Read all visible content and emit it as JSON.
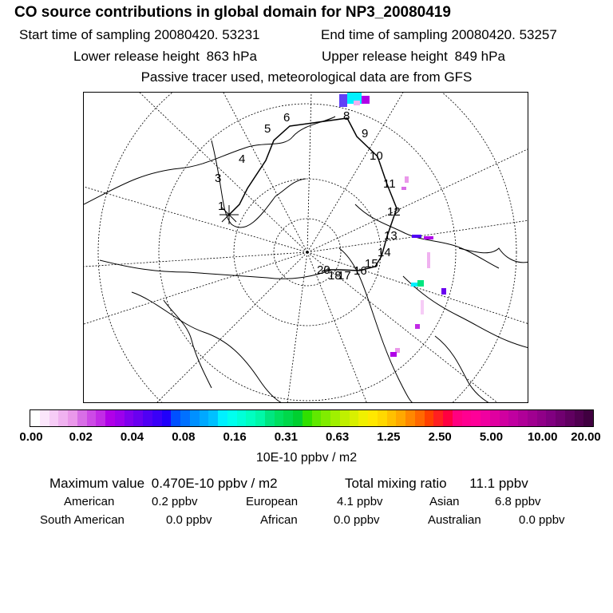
{
  "title": "CO  source contributions in global domain for NP3_20080419",
  "sampling": {
    "start_label": "Start time of sampling",
    "start_value": "20080420. 53231",
    "end_label": "End time of sampling",
    "end_value": "20080420. 53257"
  },
  "release": {
    "lower_label": "Lower release height",
    "lower_value": "863 hPa",
    "upper_label": "Upper release height",
    "upper_value": "849 hPa"
  },
  "note": "Passive tracer used, meteorological data are from GFS",
  "trajectory_labels": [
    "1",
    "3",
    "4",
    "5",
    "6",
    "8",
    "9",
    "10",
    "11",
    "12",
    "13",
    "14",
    "15",
    "16",
    "17",
    "18",
    "20"
  ],
  "colorbar": {
    "ticks": [
      "0.00",
      "0.02",
      "0.04",
      "0.08",
      "0.16",
      "0.31",
      "0.63",
      "1.25",
      "2.50",
      "5.00",
      "10.00",
      "20.00"
    ],
    "colors": [
      "#ffffff",
      "#fbe6fb",
      "#f6ccf6",
      "#f0b2f0",
      "#ea98ea",
      "#d86ee6",
      "#cd4ae6",
      "#c22be6",
      "#b000e8",
      "#9c00ec",
      "#8000ee",
      "#6a00f0",
      "#5000f4",
      "#3a00f8",
      "#2000fb",
      "#0050ff",
      "#0070ff",
      "#0090ff",
      "#00a8ff",
      "#00c0ff",
      "#00f0ff",
      "#00ffee",
      "#00ffd8",
      "#00ffc0",
      "#00f8a8",
      "#00e680",
      "#00e060",
      "#00d84a",
      "#00d030",
      "#30e000",
      "#60e800",
      "#80ec00",
      "#a0f000",
      "#c0f000",
      "#d8f000",
      "#f0f000",
      "#ffe800",
      "#ffd800",
      "#ffc000",
      "#ffa800",
      "#ff8800",
      "#ff6800",
      "#ff4000",
      "#ff2020",
      "#ff0040",
      "#ff0080",
      "#ff0090",
      "#ff0098",
      "#f000a0",
      "#e000a0",
      "#d000a0",
      "#c000a0",
      "#b00098",
      "#a00090",
      "#900088",
      "#800080",
      "#700070",
      "#600060",
      "#500050",
      "#400040"
    ],
    "units": "10E-10 ppbv / m2"
  },
  "summary": {
    "max_label": "Maximum value",
    "max_value": "0.470E-10 ppbv / m2",
    "total_label": "Total mixing ratio",
    "total_value": "11.1 ppbv"
  },
  "regions": [
    {
      "name": "American",
      "value": "0.2 ppbv"
    },
    {
      "name": "European",
      "value": "4.1 ppbv"
    },
    {
      "name": "Asian",
      "value": "6.8 ppbv"
    },
    {
      "name": "South American",
      "value": "0.0 ppbv"
    },
    {
      "name": "African",
      "value": "0.0 ppbv"
    },
    {
      "name": "Australian",
      "value": "0.0 ppbv"
    }
  ]
}
